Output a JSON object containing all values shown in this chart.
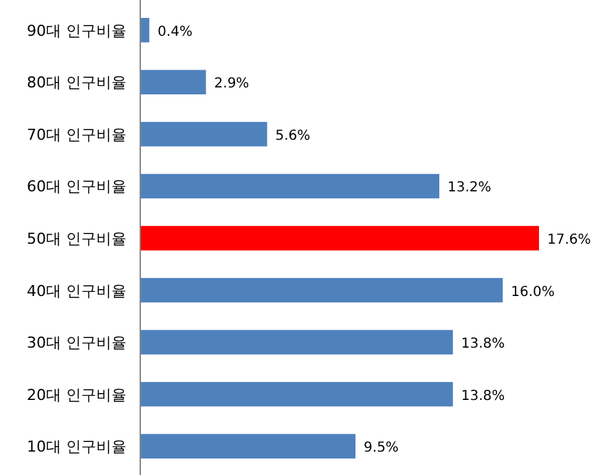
{
  "chart_data": {
    "type": "bar",
    "orientation": "horizontal",
    "categories": [
      "90대 인구비율",
      "80대 인구비율",
      "70대 인구비율",
      "60대 인구비율",
      "50대 인구비율",
      "40대 인구비율",
      "30대 인구비율",
      "20대 인구비율",
      "10대 인구비율"
    ],
    "values": [
      0.4,
      2.9,
      5.6,
      13.2,
      17.6,
      16.0,
      13.8,
      13.8,
      9.5
    ],
    "colors": [
      "#4f81bd",
      "#4f81bd",
      "#4f81bd",
      "#4f81bd",
      "#ff0000",
      "#4f81bd",
      "#4f81bd",
      "#4f81bd",
      "#4f81bd"
    ],
    "value_labels": [
      "0.4%",
      "2.9%",
      "5.6%",
      "13.2%",
      "17.6%",
      "16.0%",
      "13.8%",
      "13.8%",
      "9.5%"
    ]
  }
}
